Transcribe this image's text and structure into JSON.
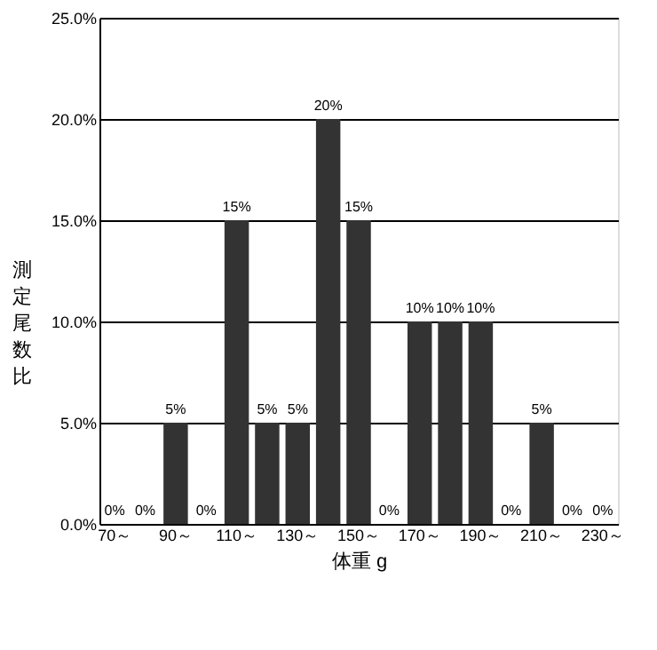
{
  "chart_data": {
    "type": "bar",
    "xlabel": "体重 g",
    "ylabel": "測定尾数比",
    "categories": [
      "70～",
      null,
      "90～",
      null,
      "110～",
      null,
      "130～",
      null,
      "150～",
      null,
      "170～",
      null,
      "190～",
      null,
      "210～",
      null,
      "230～"
    ],
    "values": [
      0,
      0,
      5,
      0,
      15,
      5,
      5,
      20,
      15,
      0,
      10,
      10,
      10,
      0,
      5,
      0,
      0
    ],
    "value_labels": [
      "0%",
      "0%",
      "5%",
      "0%",
      "15%",
      "5%",
      "5%",
      "20%",
      "15%",
      "0%",
      "10%",
      "10%",
      "10%",
      "0%",
      "5%",
      "0%",
      "0%"
    ],
    "color": "#333333",
    "ylim": [
      0,
      25
    ],
    "yticks": [
      {
        "value": 0,
        "label": "0.0%"
      },
      {
        "value": 5,
        "label": "5.0%"
      },
      {
        "value": 10,
        "label": "10.0%"
      },
      {
        "value": 15,
        "label": "15.0%"
      },
      {
        "value": 20,
        "label": "20.0%"
      },
      {
        "value": 25,
        "label": "25.0%"
      }
    ],
    "grid": "y"
  }
}
